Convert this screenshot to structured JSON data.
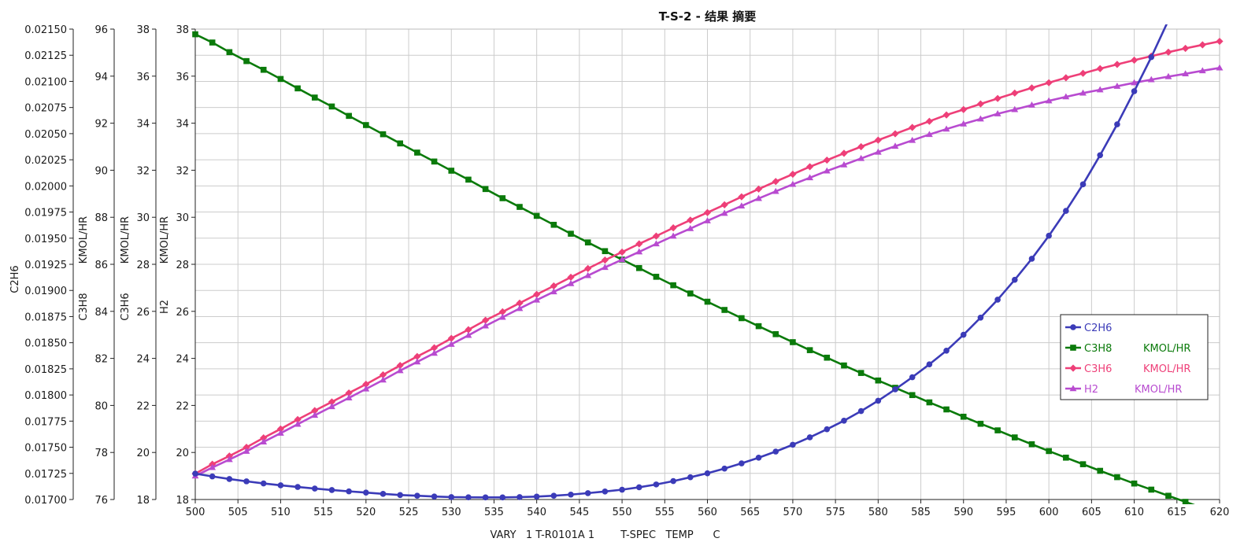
{
  "chart_data": {
    "type": "line",
    "title": "T-S-2 - 结果 摘要",
    "xlabel": "VARY   1 T-R0101A 1        T-SPEC   TEMP      C",
    "x_range": [
      500,
      620
    ],
    "x_ticks": [
      500,
      505,
      510,
      515,
      520,
      525,
      530,
      535,
      540,
      545,
      550,
      555,
      560,
      565,
      570,
      575,
      580,
      585,
      590,
      595,
      600,
      605,
      610,
      615,
      620
    ],
    "grid": true,
    "legend_position": "right",
    "x": [
      500,
      502,
      504,
      506,
      508,
      510,
      512,
      514,
      516,
      518,
      520,
      522,
      524,
      526,
      528,
      530,
      532,
      534,
      536,
      538,
      540,
      542,
      544,
      546,
      548,
      550,
      552,
      554,
      556,
      558,
      560,
      562,
      564,
      566,
      568,
      570,
      572,
      574,
      576,
      578,
      580,
      582,
      584,
      586,
      588,
      590,
      592,
      594,
      596,
      598,
      600,
      602,
      604,
      606,
      608,
      610,
      612,
      614,
      616,
      618,
      620
    ],
    "y_axes": [
      {
        "label": "C2H6",
        "range": [
          0.017,
          0.0215
        ],
        "ticks": [
          "0.01700",
          "0.01725",
          "0.01750",
          "0.01775",
          "0.01800",
          "0.01825",
          "0.01850",
          "0.01875",
          "0.01900",
          "0.01925",
          "0.01950",
          "0.01975",
          "0.02000",
          "0.02025",
          "0.02050",
          "0.02075",
          "0.02100",
          "0.02125",
          "0.02150"
        ]
      },
      {
        "label_top": "KMOL/HR",
        "label_bottom": "C3H8",
        "range": [
          76,
          96
        ],
        "ticks": [
          "76",
          "78",
          "80",
          "82",
          "84",
          "86",
          "88",
          "90",
          "92",
          "94",
          "96"
        ]
      },
      {
        "label_top": "KMOL/HR",
        "label_bottom": "C3H6",
        "range": [
          18,
          38
        ],
        "ticks": [
          "18",
          "20",
          "22",
          "24",
          "26",
          "28",
          "30",
          "32",
          "34",
          "36",
          "38"
        ]
      },
      {
        "label_top": "KMOL/HR",
        "label_bottom": "H2",
        "range": [
          18,
          38
        ],
        "ticks": [
          "18",
          "20",
          "22",
          "24",
          "26",
          "28",
          "30",
          "32",
          "34",
          "36",
          "38"
        ]
      }
    ],
    "series": [
      {
        "name": "C2H6",
        "legend_unit": "",
        "color": "#3b3bb8",
        "marker": "circle",
        "axis": 0,
        "values": [
          0.017248,
          0.017221,
          0.017196,
          0.017174,
          0.017154,
          0.017136,
          0.01712,
          0.017105,
          0.017091,
          0.017078,
          0.017066,
          0.017054,
          0.017043,
          0.017036,
          0.017029,
          0.017023,
          0.017021,
          0.01702,
          0.01702,
          0.017023,
          0.017028,
          0.017036,
          0.017047,
          0.017061,
          0.017077,
          0.017094,
          0.017117,
          0.017144,
          0.017176,
          0.017213,
          0.017251,
          0.017296,
          0.017346,
          0.0174,
          0.017459,
          0.017524,
          0.017595,
          0.017672,
          0.017754,
          0.017846,
          0.017945,
          0.018054,
          0.01817,
          0.018293,
          0.018424,
          0.018576,
          0.01874,
          0.018912,
          0.019102,
          0.019303,
          0.019523,
          0.019761,
          0.020015,
          0.020294,
          0.020589,
          0.020906,
          0.021232,
          0.021584,
          0.021965,
          0.022342,
          0.022734
        ]
      },
      {
        "name": "C3H8",
        "legend_unit": "KMOL/HR",
        "color": "#0a7a0a",
        "marker": "square",
        "axis": 1,
        "values": [
          95.78,
          95.43,
          95.02,
          94.64,
          94.27,
          93.88,
          93.48,
          93.09,
          92.71,
          92.31,
          91.92,
          91.53,
          91.14,
          90.75,
          90.37,
          89.98,
          89.6,
          89.2,
          88.81,
          88.44,
          88.06,
          87.68,
          87.3,
          86.93,
          86.56,
          86.2,
          85.84,
          85.47,
          85.11,
          84.76,
          84.41,
          84.06,
          83.71,
          83.37,
          83.03,
          82.69,
          82.35,
          82.03,
          81.7,
          81.38,
          81.06,
          80.75,
          80.44,
          80.13,
          79.83,
          79.52,
          79.22,
          78.94,
          78.64,
          78.35,
          78.06,
          77.78,
          77.5,
          77.22,
          76.95,
          76.68,
          76.42,
          76.16,
          75.9,
          75.64,
          75.38
        ]
      },
      {
        "name": "C3H6",
        "legend_unit": "KMOL/HR",
        "color": "#ee3f78",
        "marker": "diamond",
        "axis": 2,
        "values": [
          19.1,
          19.5,
          19.85,
          20.22,
          20.62,
          21.0,
          21.4,
          21.78,
          22.15,
          22.53,
          22.9,
          23.3,
          23.7,
          24.08,
          24.45,
          24.85,
          25.22,
          25.62,
          25.98,
          26.35,
          26.72,
          27.08,
          27.45,
          27.82,
          28.18,
          28.52,
          28.87,
          29.2,
          29.55,
          29.88,
          30.2,
          30.53,
          30.87,
          31.2,
          31.52,
          31.83,
          32.15,
          32.43,
          32.72,
          33.0,
          33.28,
          33.55,
          33.82,
          34.08,
          34.35,
          34.58,
          34.82,
          35.05,
          35.28,
          35.5,
          35.72,
          35.93,
          36.12,
          36.32,
          36.5,
          36.68,
          36.85,
          37.02,
          37.18,
          37.33,
          37.48
        ]
      },
      {
        "name": "H2",
        "legend_unit": "KMOL/HR",
        "color": "#b84bd0",
        "marker": "triangle",
        "axis": 3,
        "values": [
          19.0,
          19.36,
          19.7,
          20.05,
          20.45,
          20.82,
          21.2,
          21.58,
          21.95,
          22.32,
          22.7,
          23.08,
          23.48,
          23.85,
          24.22,
          24.6,
          24.98,
          25.38,
          25.75,
          26.12,
          26.48,
          26.83,
          27.18,
          27.52,
          27.87,
          28.2,
          28.53,
          28.87,
          29.2,
          29.52,
          29.85,
          30.17,
          30.48,
          30.8,
          31.1,
          31.4,
          31.68,
          31.97,
          32.23,
          32.5,
          32.77,
          33.02,
          33.27,
          33.52,
          33.75,
          33.97,
          34.18,
          34.4,
          34.58,
          34.77,
          34.95,
          35.12,
          35.28,
          35.42,
          35.57,
          35.72,
          35.85,
          35.98,
          36.1,
          36.23,
          36.35
        ]
      }
    ]
  }
}
